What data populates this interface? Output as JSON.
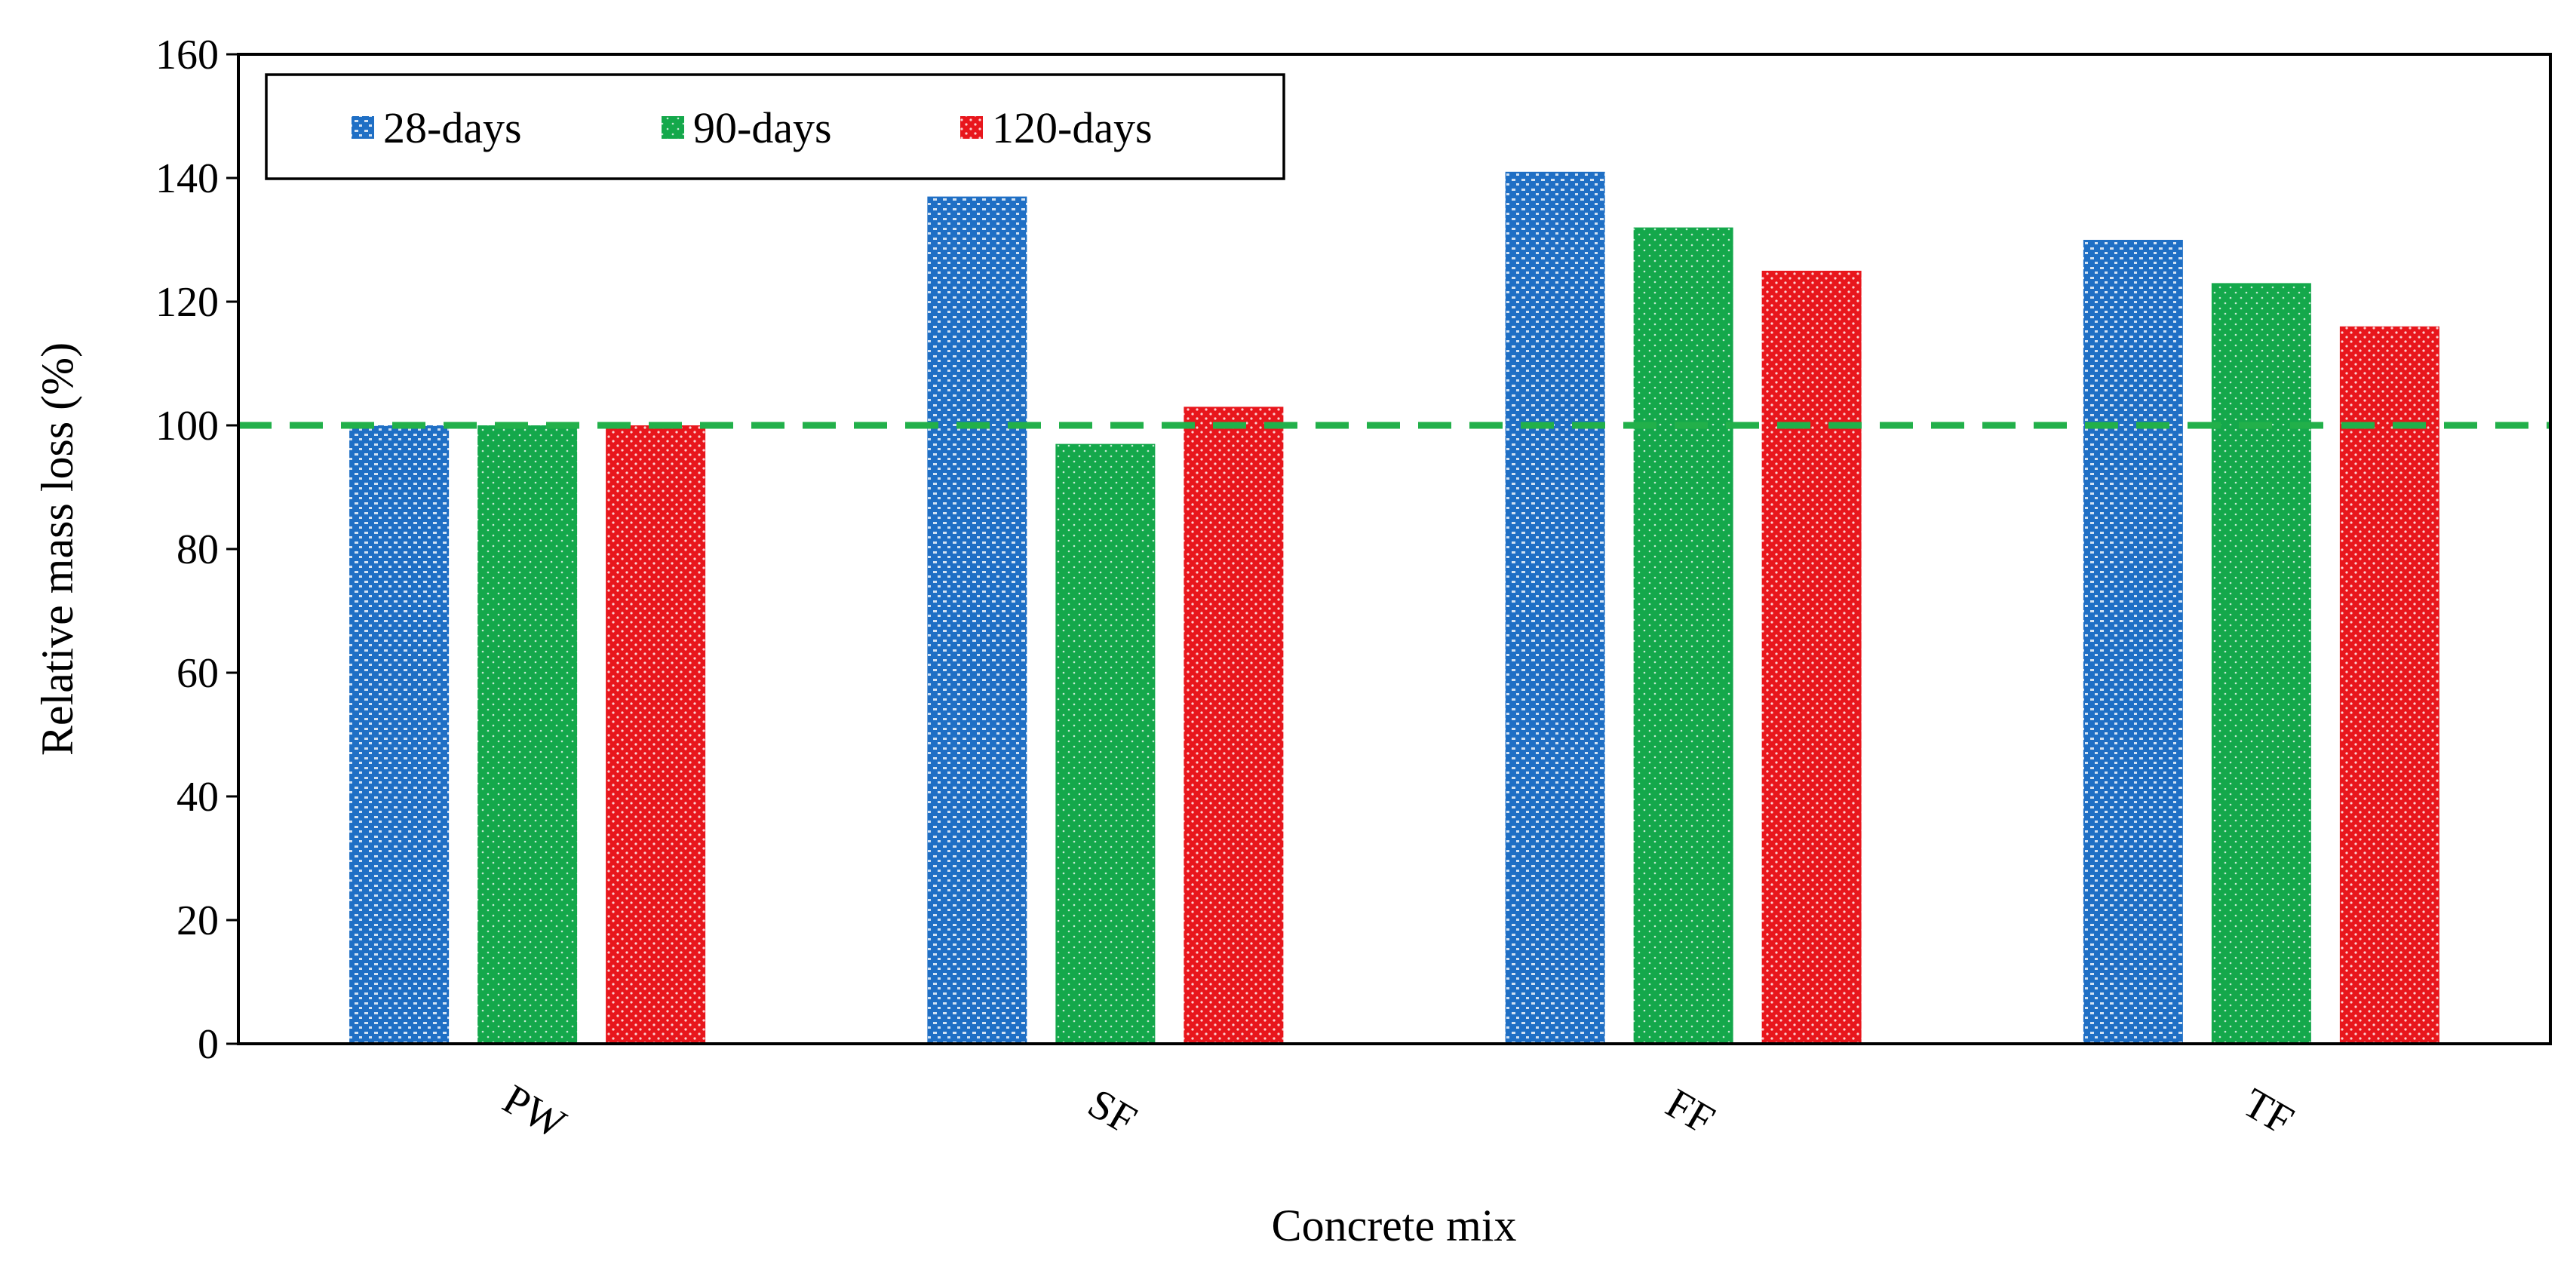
{
  "chart_data": {
    "type": "bar",
    "title": "",
    "xlabel": "Concrete mix",
    "ylabel": "Relative mass loss (%)",
    "categories": [
      "PW",
      "SF",
      "FF",
      "TF"
    ],
    "ylim": [
      0,
      160
    ],
    "yticks": [
      0,
      20,
      40,
      60,
      80,
      100,
      120,
      140,
      160
    ],
    "grid": false,
    "legend_position": "top-left",
    "reference_line": {
      "value": 100,
      "style": "dashed",
      "color": "#22b04a"
    },
    "series": [
      {
        "name": "28-days",
        "color": "#1f6fc5",
        "values": [
          100,
          137,
          141,
          130
        ]
      },
      {
        "name": "90-days",
        "color": "#14a84b",
        "values": [
          100,
          97,
          132,
          123
        ]
      },
      {
        "name": "120-days",
        "color": "#e8161c",
        "values": [
          100,
          103,
          125,
          116
        ]
      }
    ]
  }
}
